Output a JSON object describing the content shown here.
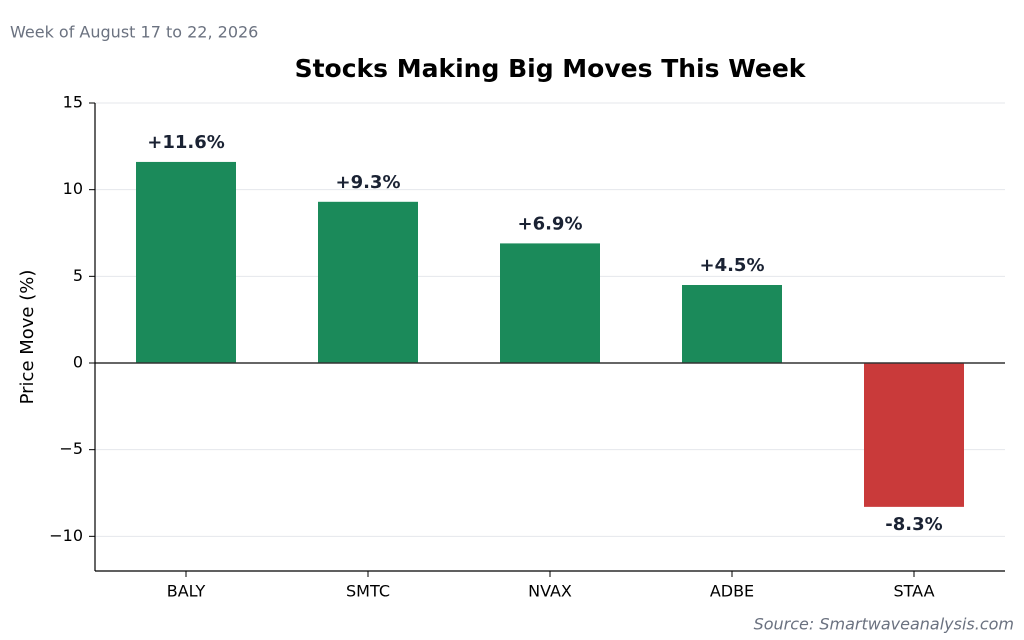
{
  "chart_data": {
    "type": "bar",
    "title": "Stocks Making Big Moves This Week",
    "subtitle": "Week of August 17 to 22, 2026",
    "source": "Source: Smartwaveanalysis.com",
    "y_label": "Price Move (%)",
    "categories": [
      "BALY",
      "SMTC",
      "NVAX",
      "ADBE",
      "STAA"
    ],
    "values": [
      11.6,
      9.3,
      6.9,
      4.5,
      -8.3
    ],
    "value_labels": [
      "+11.6%",
      "+9.3%",
      "+6.9%",
      "+4.5%",
      "-8.3%"
    ],
    "colors": [
      "#1b8a5a",
      "#1b8a5a",
      "#1b8a5a",
      "#1b8a5a",
      "#c93a3a"
    ],
    "ylim": [
      -12,
      15
    ],
    "yticks": [
      {
        "value": -10,
        "label": "−10"
      },
      {
        "value": -5,
        "label": "−5"
      },
      0,
      5,
      10,
      15
    ],
    "grid": true
  }
}
